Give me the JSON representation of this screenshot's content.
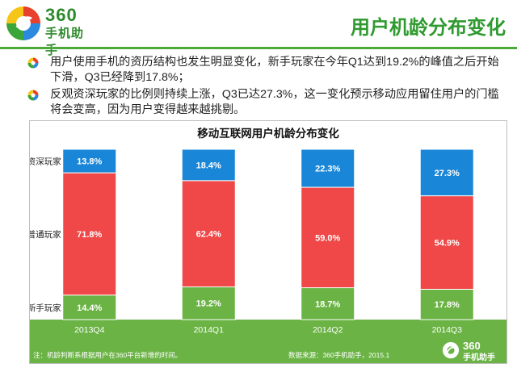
{
  "header": {
    "logo_number": "360",
    "logo_name": "手机助手",
    "title": "用户机龄分布变化"
  },
  "bullets": [
    "用户使用手机的资历结构也发生明显变化，新手玩家在今年Q1达到19.2%的峰值之后开始下滑，Q3已经降到17.8%；",
    "反观资深玩家的比例则持续上涨，Q3已达27.3%，这一变化预示移动应用留住用户的门槛将会变高，因为用户变得越来越挑剔。"
  ],
  "footer": {
    "note": "注：机龄判断系根据用户在360平台新增的时间。",
    "source": "数据来源：360手机助手，2015.1",
    "logo_number": "360",
    "logo_name": "手机助手"
  },
  "colors": {
    "brand_green": "#2f9a2f",
    "senior": "#1a86d8",
    "regular": "#f04848",
    "novice": "#6ab344"
  },
  "chart_data": {
    "type": "bar",
    "stacked": true,
    "title": "移动互联网用户机龄分布变化",
    "categories": [
      "2013Q4",
      "2014Q1",
      "2014Q2",
      "2014Q3"
    ],
    "series": [
      {
        "name": "新手玩家",
        "values": [
          14.4,
          19.2,
          18.7,
          17.8
        ],
        "labels": [
          "14.4%",
          "19.2%",
          "18.7%",
          "17.8%"
        ],
        "color": "#6ab344"
      },
      {
        "name": "普通玩家",
        "values": [
          71.8,
          62.4,
          59.0,
          54.9
        ],
        "labels": [
          "71.8%",
          "62.4%",
          "59.0%",
          "54.9%"
        ],
        "color": "#f04848"
      },
      {
        "name": "资深玩家",
        "values": [
          13.8,
          18.4,
          22.3,
          27.3
        ],
        "labels": [
          "13.8%",
          "18.4%",
          "22.3%",
          "27.3%"
        ],
        "color": "#1a86d8"
      }
    ],
    "ylim": [
      0,
      100
    ]
  }
}
